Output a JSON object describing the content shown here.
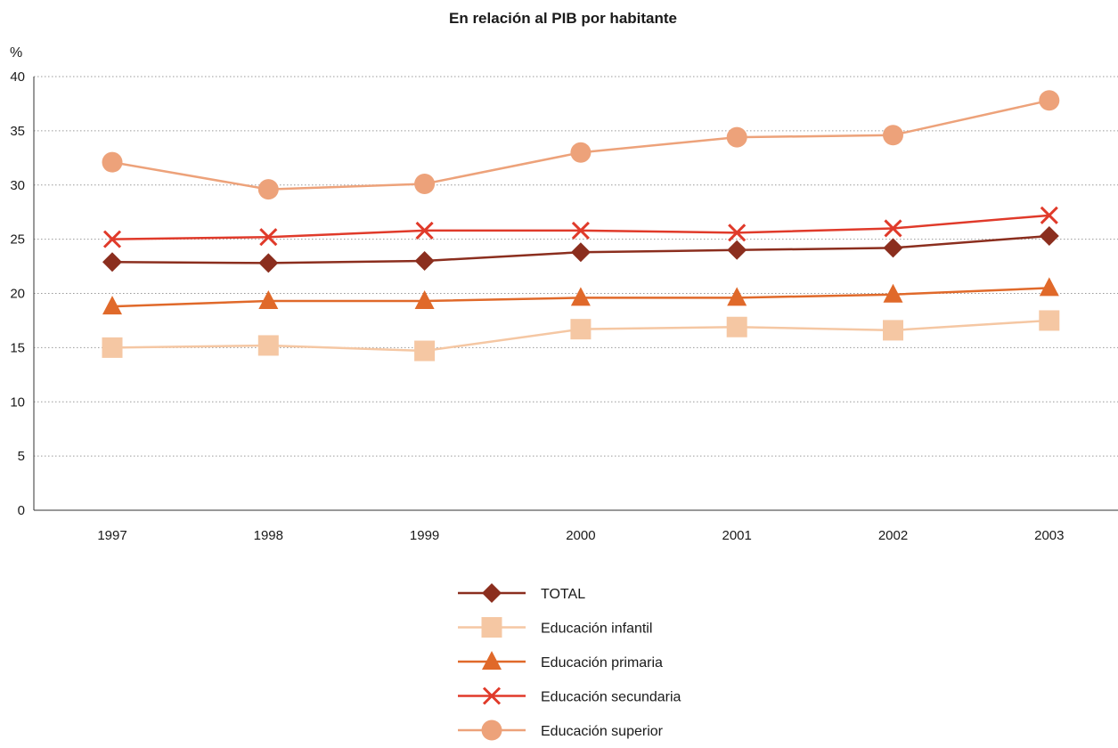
{
  "chart_data": {
    "type": "line",
    "title": "En relación al PIB por habitante",
    "ylabel": "%",
    "xlabel": "",
    "ylim": [
      0,
      40
    ],
    "yticks": [
      0,
      5,
      10,
      15,
      20,
      25,
      30,
      35,
      40
    ],
    "categories": [
      "1997",
      "1998",
      "1999",
      "2000",
      "2001",
      "2002",
      "2003"
    ],
    "grid": true,
    "legend_position": "bottom-center",
    "series": [
      {
        "name": "TOTAL",
        "color": "#8b2e1e",
        "marker": "diamond",
        "values": [
          22.9,
          22.8,
          23.0,
          23.8,
          24.0,
          24.2,
          25.3
        ]
      },
      {
        "name": "Educación infantil",
        "color": "#f5c7a3",
        "marker": "square",
        "values": [
          15.0,
          15.2,
          14.7,
          16.7,
          16.9,
          16.6,
          17.5
        ]
      },
      {
        "name": "Educación primaria",
        "color": "#e0692a",
        "marker": "triangle",
        "values": [
          18.8,
          19.3,
          19.3,
          19.6,
          19.6,
          19.9,
          20.5
        ]
      },
      {
        "name": "Educación secundaria",
        "color": "#e03a2a",
        "marker": "cross",
        "values": [
          25.0,
          25.2,
          25.8,
          25.8,
          25.6,
          26.0,
          27.2
        ]
      },
      {
        "name": "Educación superior",
        "color": "#eda27a",
        "marker": "circle",
        "values": [
          32.1,
          29.6,
          30.1,
          33.0,
          34.4,
          34.6,
          37.8
        ]
      }
    ]
  }
}
